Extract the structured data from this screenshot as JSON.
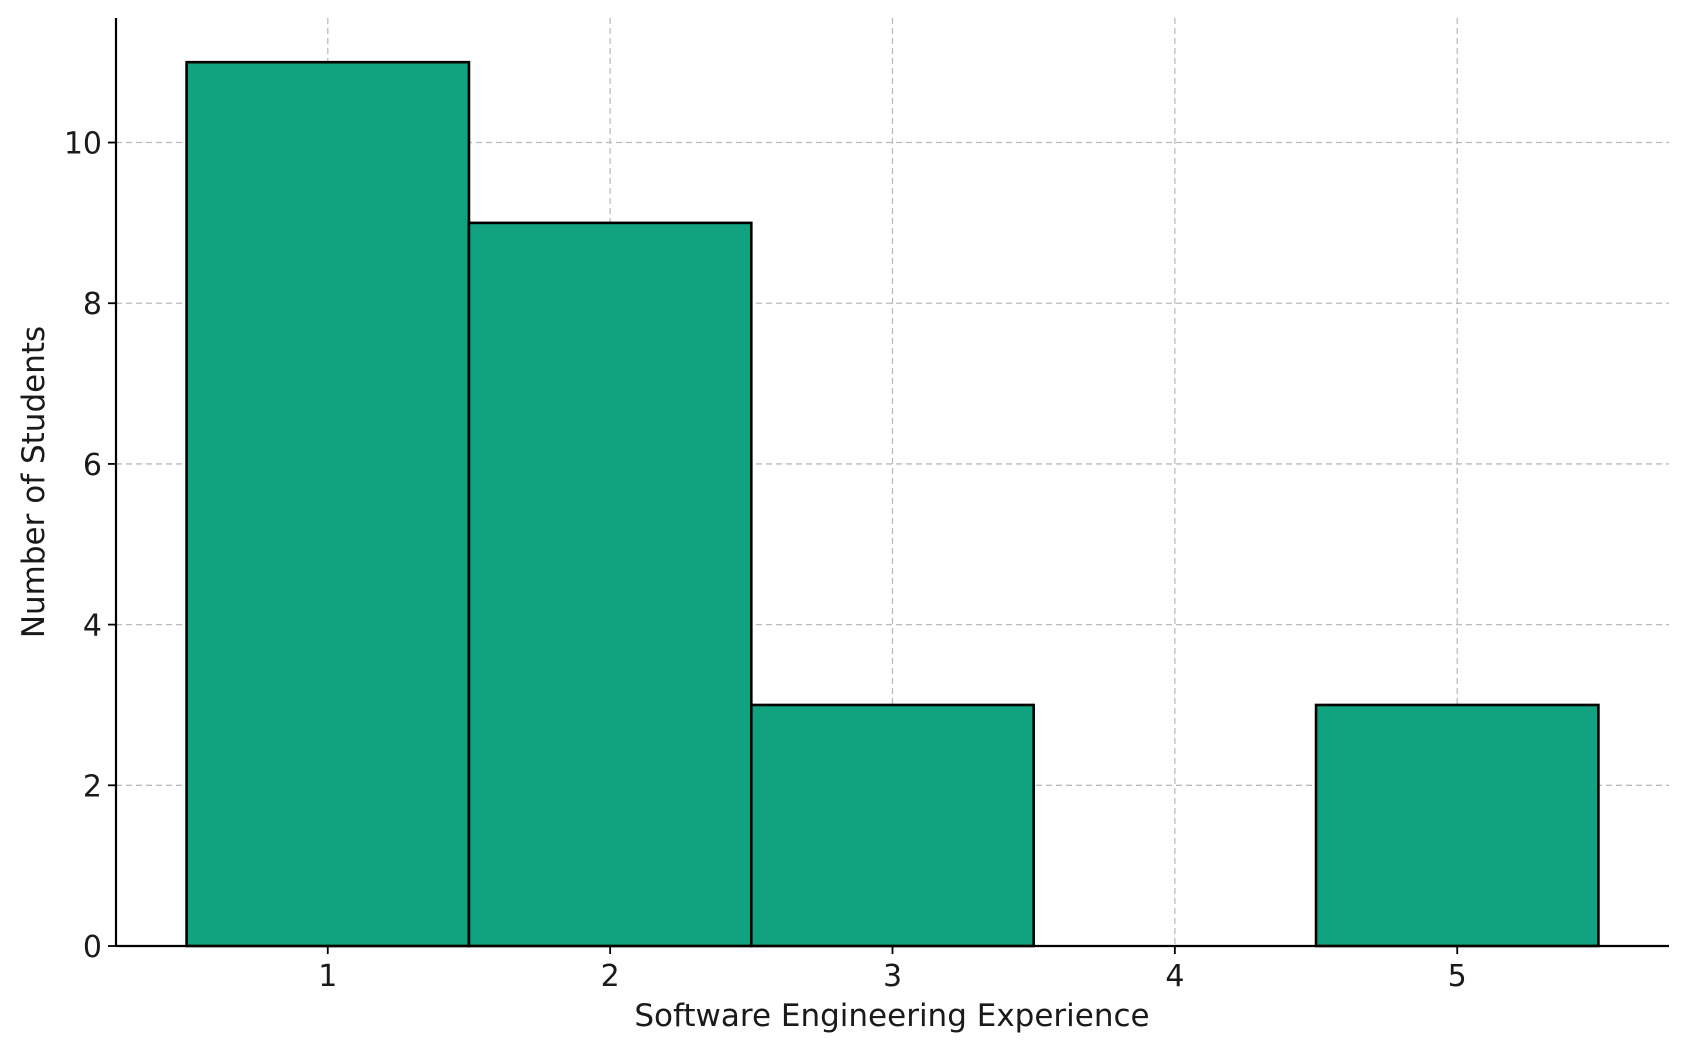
{
  "chart_data": {
    "type": "bar",
    "title": "",
    "xlabel": "Software Engineering Experience",
    "ylabel": "Number of Students",
    "categories": [
      "1",
      "2",
      "3",
      "4",
      "5"
    ],
    "x": [
      1,
      2,
      3,
      4,
      5
    ],
    "values": [
      11,
      9,
      3,
      0,
      3
    ],
    "xlim": [
      0.25,
      5.75
    ],
    "ylim": [
      0,
      11.55
    ],
    "yticks": [
      0,
      2,
      4,
      6,
      8,
      10
    ],
    "xticks": [
      1,
      2,
      3,
      4,
      5
    ],
    "grid": true,
    "bar_color": "#11a37f",
    "edge_color": "#000000"
  }
}
